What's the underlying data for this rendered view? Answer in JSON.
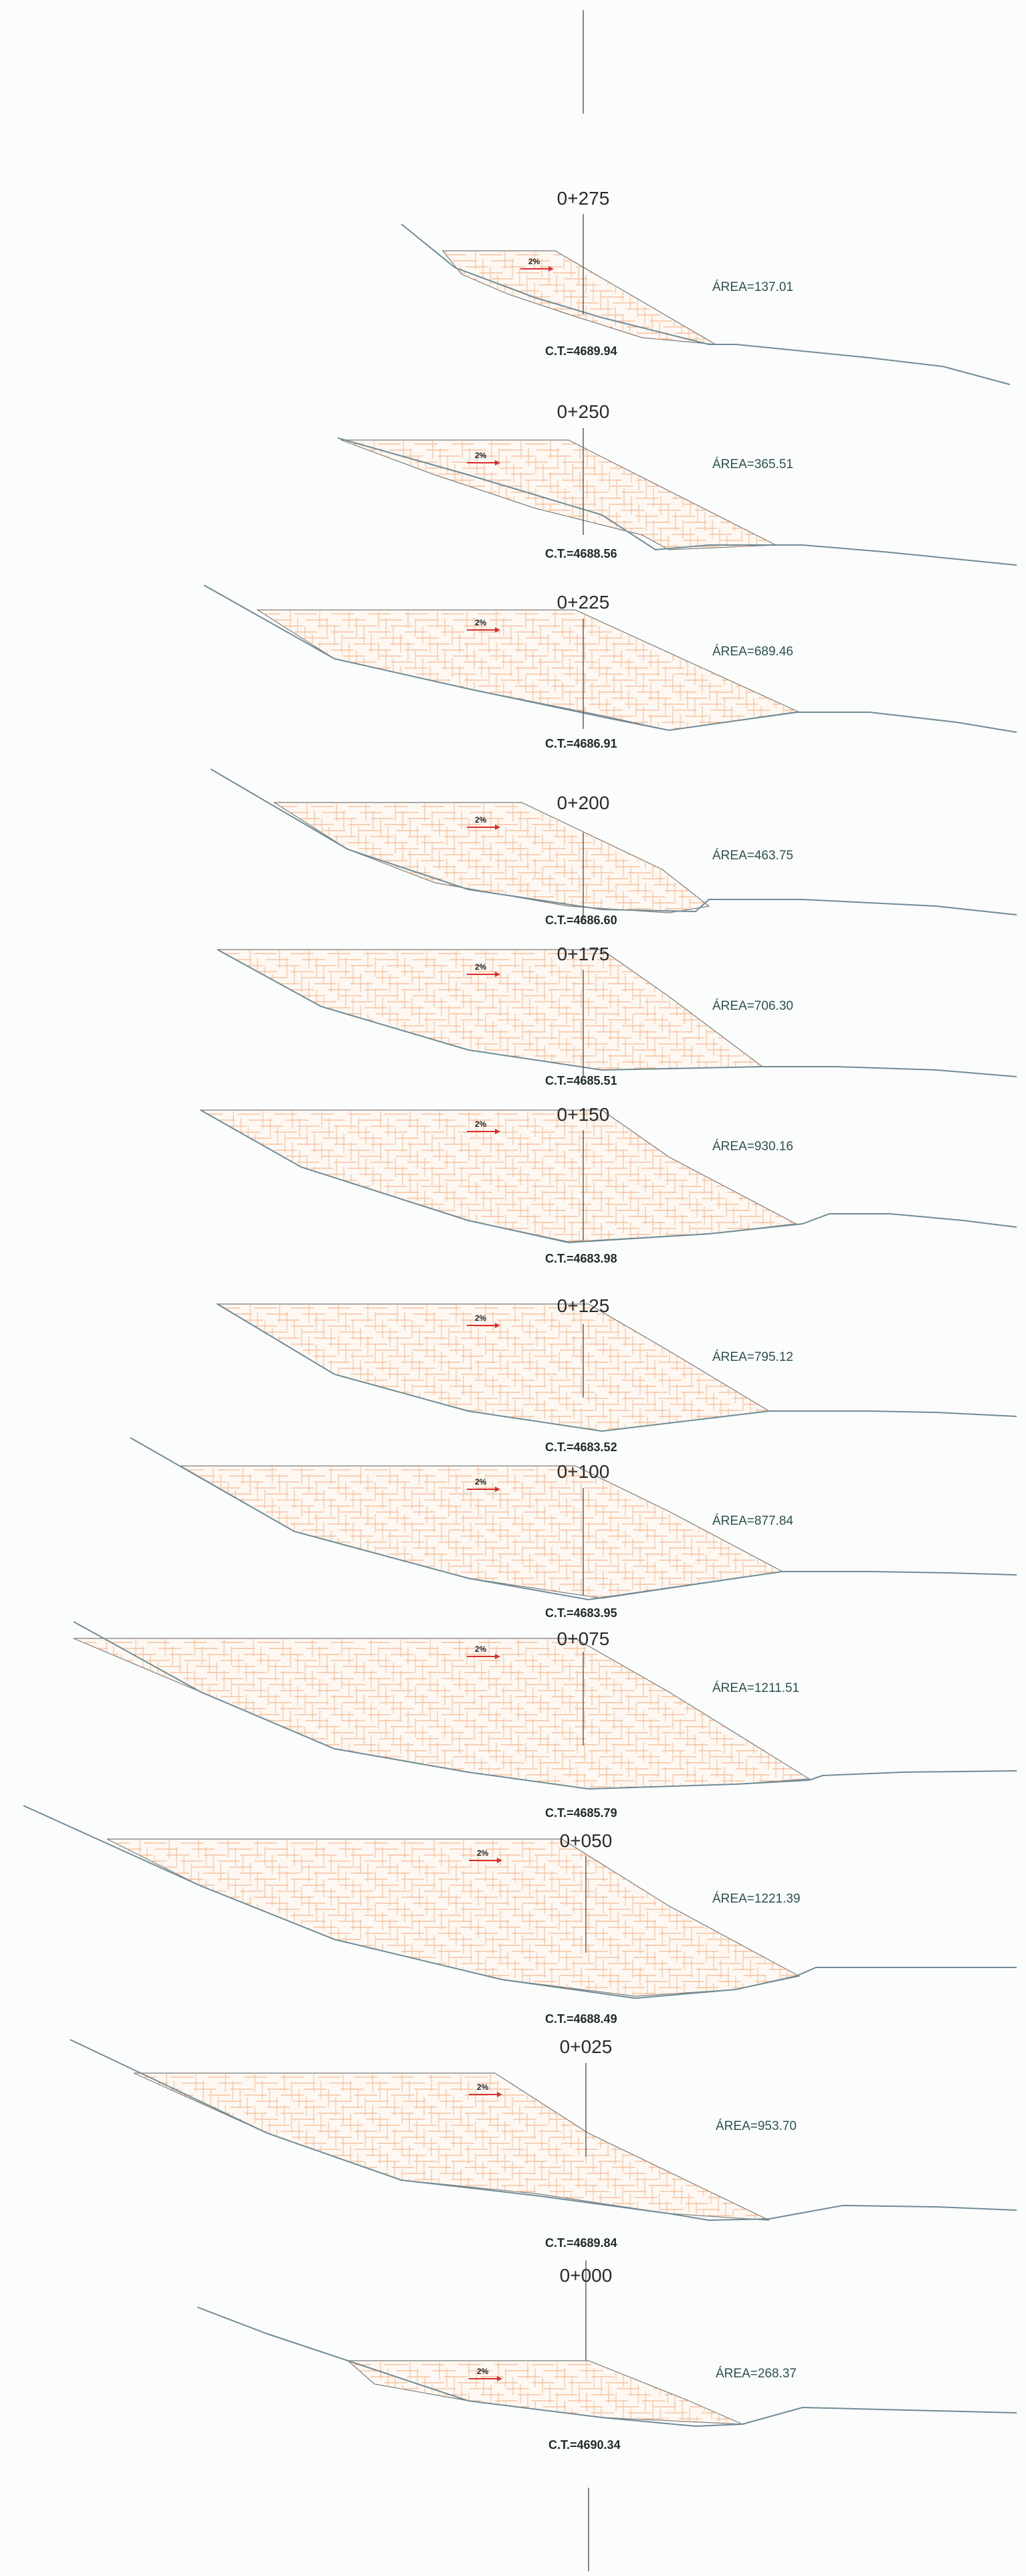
{
  "drawing": {
    "colors": {
      "background": "#fbfdfd",
      "ground_line": "#6f8b96",
      "hatch": "#f0a878",
      "slope_arrow": "#d93030",
      "label": "#2d5050"
    },
    "sections": [
      {
        "station": "0+275",
        "area_label": "ÁREA=137.01",
        "ct_label": "C.T.=4689.94",
        "slope_label": "2%"
      },
      {
        "station": "0+250",
        "area_label": "ÁREA=365.51",
        "ct_label": "C.T.=4688.56",
        "slope_label": "2%"
      },
      {
        "station": "0+225",
        "area_label": "ÁREA=689.46",
        "ct_label": "C.T.=4686.91",
        "slope_label": "2%"
      },
      {
        "station": "0+200",
        "area_label": "ÁREA=463.75",
        "ct_label": "C.T.=4686.60",
        "slope_label": "2%"
      },
      {
        "station": "0+175",
        "area_label": "ÁREA=706.30",
        "ct_label": "C.T.=4685.51",
        "slope_label": "2%"
      },
      {
        "station": "0+150",
        "area_label": "ÁREA=930.16",
        "ct_label": "C.T.=4683.98",
        "slope_label": "2%"
      },
      {
        "station": "0+125",
        "area_label": "ÁREA=795.12",
        "ct_label": "C.T.=4683.52",
        "slope_label": "2%"
      },
      {
        "station": "0+100",
        "area_label": "ÁREA=877.84",
        "ct_label": "C.T.=4683.95",
        "slope_label": "2%"
      },
      {
        "station": "0+075",
        "area_label": "ÁREA=1211.51",
        "ct_label": "C.T.=4685.79",
        "slope_label": "2%"
      },
      {
        "station": "0+050",
        "area_label": "ÁREA=1221.39",
        "ct_label": "C.T.=4688.49",
        "slope_label": "2%"
      },
      {
        "station": "0+025",
        "area_label": "ÁREA=953.70",
        "ct_label": "C.T.=4689.84",
        "slope_label": "2%"
      },
      {
        "station": "0+000",
        "area_label": "ÁREA=268.37",
        "ct_label": "C.T.=4690.34",
        "slope_label": "2%"
      }
    ]
  }
}
